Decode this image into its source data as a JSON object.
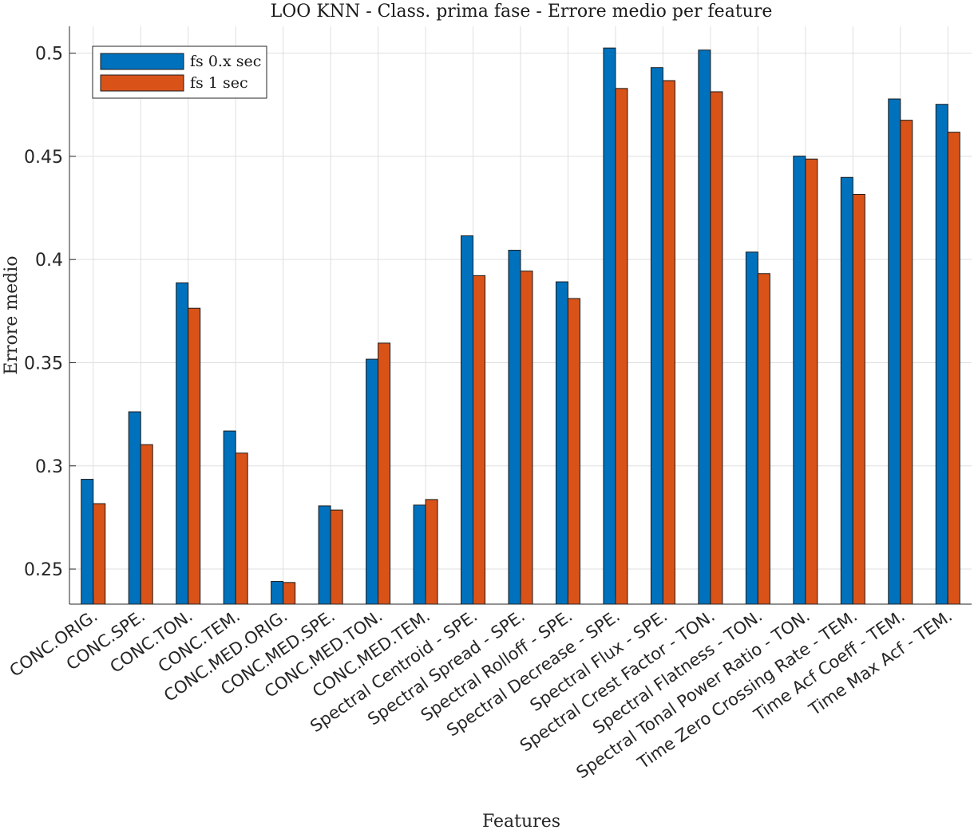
{
  "chart_data": {
    "type": "bar",
    "title": "LOO KNN - Class. prima fase - Errore medio per feature",
    "xlabel": "Features",
    "ylabel": "Errore medio",
    "ylim": [
      0.233,
      0.513
    ],
    "yticks": [
      0.25,
      0.3,
      0.35,
      0.4,
      0.45,
      0.5
    ],
    "ytick_labels": [
      "0.25",
      "0.3",
      "0.35",
      "0.4",
      "0.45",
      "0.5"
    ],
    "grid": true,
    "legend_position": "top-left",
    "categories": [
      "CONC.ORIG.",
      "CONC.SPE.",
      "CONC.TON.",
      "CONC.TEM.",
      "CONC.MED.ORIG.",
      "CONC.MED.SPE.",
      "CONC.MED.TON.",
      "CONC.MED.TEM.",
      "Spectral Centroid - SPE.",
      "Spectral Spread - SPE.",
      "Spectral Rolloff - SPE.",
      "Spectral Decrease - SPE.",
      "Spectral Flux - SPE.",
      "Spectral Crest Factor - TON.",
      "Spectral Flatness - TON.",
      "Spectral Tonal Power Ratio - TON.",
      "Time Zero Crossing Rate - TEM.",
      "Time Acf Coeff - TEM.",
      "Time Max Acf - TEM."
    ],
    "series": [
      {
        "name": "fs 0.x sec",
        "color": "#0072BD",
        "values": [
          0.2935,
          0.3262,
          0.3887,
          0.3169,
          0.244,
          0.2806,
          0.3517,
          0.281,
          0.4115,
          0.4045,
          0.3892,
          0.5025,
          0.493,
          0.5015,
          0.4036,
          0.4501,
          0.4398,
          0.4778,
          0.4752
        ]
      },
      {
        "name": "fs 1 sec",
        "color": "#D95319",
        "values": [
          0.2817,
          0.3103,
          0.3764,
          0.3062,
          0.2435,
          0.2786,
          0.3595,
          0.2837,
          0.3922,
          0.3944,
          0.3811,
          0.4829,
          0.4867,
          0.4813,
          0.3932,
          0.4487,
          0.4316,
          0.4675,
          0.4617
        ]
      }
    ]
  }
}
